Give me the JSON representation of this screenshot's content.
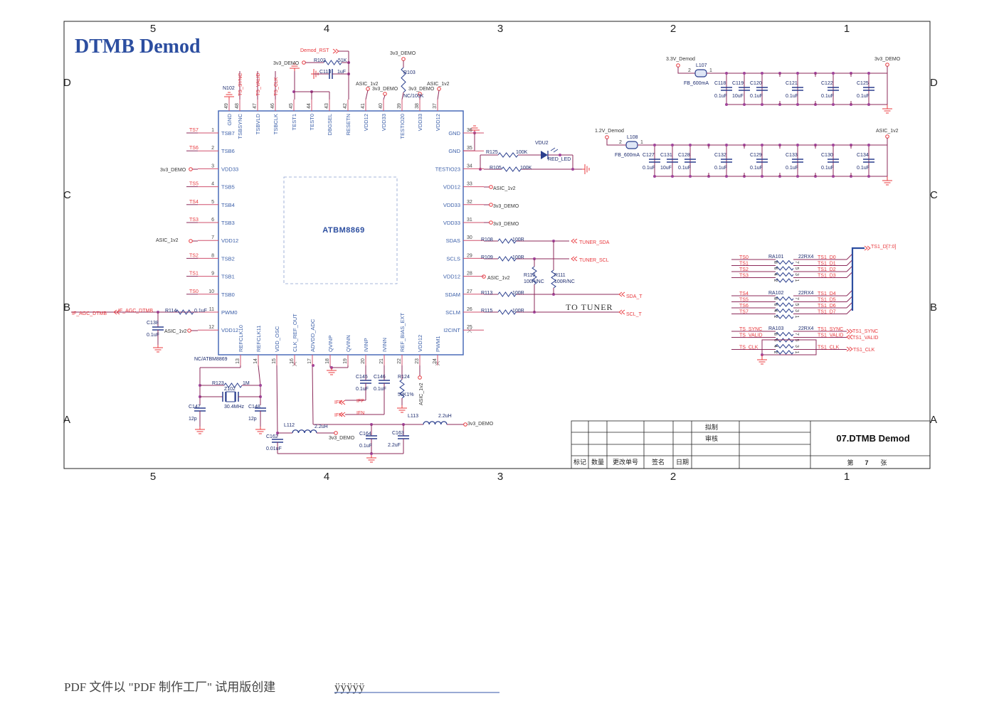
{
  "title": "DTMB Demod",
  "zones": {
    "columns": [
      "5",
      "4",
      "3",
      "2",
      "1"
    ],
    "rows": [
      "D",
      "C",
      "B",
      "A"
    ]
  },
  "colors": {
    "wire": "#8c2a5a",
    "net_label": "#e8383d",
    "pin_name": "#3a5ea8",
    "component": "#1c2b6e",
    "junction": "#a0449a",
    "title": "#2c4ea0"
  },
  "chip": {
    "part": "ATBM8869",
    "ref": "NC/ATBM8869",
    "left": [
      {
        "num": "1",
        "name": "TSB7",
        "net": "TS7"
      },
      {
        "num": "2",
        "name": "TSB6",
        "net": "TS6"
      },
      {
        "num": "3",
        "name": "VDD33",
        "net": ""
      },
      {
        "num": "4",
        "name": "TSB5",
        "net": "TS5"
      },
      {
        "num": "5",
        "name": "TSB4",
        "net": "TS4"
      },
      {
        "num": "6",
        "name": "TSB3",
        "net": "TS3"
      },
      {
        "num": "7",
        "name": "VDD12",
        "net": ""
      },
      {
        "num": "8",
        "name": "TSB2",
        "net": "TS2"
      },
      {
        "num": "9",
        "name": "TSB1",
        "net": "TS1"
      },
      {
        "num": "10",
        "name": "TSB0",
        "net": "TS0"
      },
      {
        "num": "11",
        "name": "PWM0",
        "net": ""
      },
      {
        "num": "12",
        "name": "VDD12",
        "net": ""
      }
    ],
    "right": [
      {
        "num": "36",
        "name": "GND"
      },
      {
        "num": "35",
        "name": "GND"
      },
      {
        "num": "34",
        "name": "TESTIO23"
      },
      {
        "num": "33",
        "name": "VDD12"
      },
      {
        "num": "32",
        "name": "VDD33"
      },
      {
        "num": "31",
        "name": "VDD33"
      },
      {
        "num": "30",
        "name": "SDAS"
      },
      {
        "num": "29",
        "name": "SCLS"
      },
      {
        "num": "28",
        "name": "VDD12"
      },
      {
        "num": "27",
        "name": "SDAM"
      },
      {
        "num": "26",
        "name": "SCLM"
      },
      {
        "num": "25",
        "name": "I2CINT"
      }
    ],
    "top": [
      {
        "num": "49",
        "name": "GND"
      },
      {
        "num": "48",
        "name": "TSBSYNC"
      },
      {
        "num": "47",
        "name": "TSBVLD"
      },
      {
        "num": "46",
        "name": "TSBCLK"
      },
      {
        "num": "45",
        "name": "TEST1"
      },
      {
        "num": "44",
        "name": "TEST0"
      },
      {
        "num": "43",
        "name": "DBGSEL"
      },
      {
        "num": "42",
        "name": "RESETN"
      },
      {
        "num": "41",
        "name": "VDD12"
      },
      {
        "num": "40",
        "name": "VDD33"
      },
      {
        "num": "39",
        "name": "TESTIO20"
      },
      {
        "num": "38",
        "name": "VDD33"
      },
      {
        "num": "37",
        "name": "VDD12"
      }
    ],
    "bottom": [
      {
        "num": "13",
        "name": "REFCLK10"
      },
      {
        "num": "14",
        "name": "REFCLK11"
      },
      {
        "num": "15",
        "name": "VDD_OSC"
      },
      {
        "num": "16",
        "name": "CLK_REF_OUT"
      },
      {
        "num": "17",
        "name": "ADVDD_ADC"
      },
      {
        "num": "18",
        "name": "QVINP"
      },
      {
        "num": "19",
        "name": "QVINN"
      },
      {
        "num": "20",
        "name": "IVINP"
      },
      {
        "num": "21",
        "name": "IVINN"
      },
      {
        "num": "22",
        "name": "REF_BIAS_EXT"
      },
      {
        "num": "23",
        "name": "VDD12"
      },
      {
        "num": "24",
        "name": "PWM1"
      }
    ]
  },
  "labels": {
    "l3": "3v3_DEMO",
    "l7": "ASIC_1v2",
    "if_agc1": "IF_AGC_DTMB",
    "if_agc2": "IF_AGC_DTMB",
    "r114": "R114",
    "r114v": "0.1uF",
    "c138": "C138",
    "c138v": "0.1uF",
    "l12": "ASIC_1v2",
    "n102": "N102",
    "ts_sync": "TS_SYNC",
    "ts_valid": "TS_VALID",
    "ts_clk": "TS_CLK",
    "demod_rst": "Demod_RST",
    "r102_pwr": "3v3_DEMO",
    "r102": "R102",
    "r102v": "51K",
    "c113": "C113",
    "c113v": "1uF",
    "r103_pwr": "3v3_DEMO",
    "r103": "R103",
    "r103v": "NC/100K",
    "l41": "ASIC_1v2",
    "l40": "3v3_DEMO",
    "l38": "3v3_DEMO",
    "l37": "ASIC_1v2",
    "r125": "R125",
    "r125v": "100K",
    "vdu2": "VDU2",
    "led": "RED_LED",
    "r105": "R105",
    "r105v": "100K",
    "l33": "ASIC_1v2",
    "l32": "3v3_DEMO",
    "l31": "3v3_DEMO",
    "r108": "R108",
    "r108v": "100R",
    "tuner_sda": "TUNER_SDA",
    "r109": "R109",
    "r109v": "100R",
    "tuner_scl": "TUNER_SCL",
    "l28": "ASIC_1v2",
    "r110": "R110",
    "r110v": "100R/NC",
    "r111": "R111",
    "r111v": "100R/NC",
    "r113": "R113",
    "r113v": "100R",
    "sda_t": "SDA_T",
    "r115": "R115",
    "r115v": "100R",
    "scl_t": "SCL_T",
    "to_tuner": "TO TUNER",
    "r123": "R123",
    "r123v": "1M",
    "z102": "Z102",
    "xtal": "30.4MHz",
    "c147": "C147",
    "c147v": "12p",
    "c148": "C148",
    "c148v": "12p",
    "c162": "C162",
    "c162v": "0.01uF",
    "l112": "L112",
    "l112v": "2.2uH",
    "l112_pwr": "3v3_DEMO",
    "c164": "C164",
    "c164v": "0.1uF",
    "c163": "C163",
    "c163v": "2.2uF",
    "l113": "L113",
    "l113v": "2.2uH",
    "l113_pwr": "3v3_DEMO",
    "c145": "C145",
    "c145v": "0.1uF",
    "c146": "C146",
    "c146v": "0.1uF",
    "r124": "R124",
    "r124v": "59K1%",
    "ifp1": "IFP",
    "ifp2": "IFP",
    "ifn1": "IFN",
    "ifn2": "IFN",
    "l23": "ASIC_1v2"
  },
  "decoupling": [
    {
      "source": "3.3V_Demod",
      "bead": "L107",
      "bead_value": "FB_600mA",
      "pin_in": "2",
      "pin_out": "1",
      "rail": "3v3_DEMO",
      "caps": [
        {
          "ref": "C118",
          "value": "0.1uF"
        },
        {
          "ref": "C119",
          "value": "10uF"
        },
        {
          "ref": "C120",
          "value": "0.1uF"
        },
        {
          "ref": "C121",
          "value": "0.1uF"
        },
        {
          "ref": "C122",
          "value": "0.1uF"
        },
        {
          "ref": "C125",
          "value": "0.1uF"
        }
      ]
    },
    {
      "source": "1.2V_Demod",
      "bead": "L108",
      "bead_value": "FB_600mA",
      "pin_in": "2",
      "pin_out": "1",
      "rail": "ASIC_1v2",
      "caps": [
        {
          "ref": "C127",
          "value": "0.1uF"
        },
        {
          "ref": "C131",
          "value": "10uF"
        },
        {
          "ref": "C128",
          "value": "0.1uF"
        },
        {
          "ref": "C132",
          "value": "0.1uF"
        },
        {
          "ref": "C129",
          "value": "0.1uF"
        },
        {
          "ref": "C133",
          "value": "0.1uF"
        },
        {
          "ref": "C130",
          "value": "0.1uF"
        },
        {
          "ref": "C134",
          "value": "0.1uF"
        }
      ]
    }
  ],
  "resistor_arrays": [
    {
      "ref": "RA101",
      "value": "22RX4",
      "inputs": [
        "TS0",
        "TS1",
        "TS2",
        "TS3"
      ],
      "outputs": [
        "TS1_D0",
        "TS1_D1",
        "TS1_D2",
        "TS1_D3"
      ],
      "pins_left": [
        "8",
        "6",
        "4",
        "2"
      ],
      "pins_right": [
        "7",
        "5",
        "3",
        "1"
      ]
    },
    {
      "ref": "RA102",
      "value": "22RX4",
      "inputs": [
        "TS4",
        "TS5",
        "TS6",
        "TS7"
      ],
      "outputs": [
        "TS1_D4",
        "TS1_D5",
        "TS1_D6",
        "TS1_D7"
      ],
      "pins_left": [
        "8",
        "6",
        "4",
        "2"
      ],
      "pins_right": [
        "7",
        "5",
        "3",
        "1"
      ]
    },
    {
      "ref": "RA103",
      "value": "22RX4",
      "inputs": [
        "TS_SYNC",
        "TS_VALID",
        "",
        "TS_CLK"
      ],
      "outputs": [
        "TS1_SYNC",
        "TS1_VALID",
        "",
        "TS1_CLK"
      ],
      "pins_left": [
        "8",
        "6",
        "4",
        "2"
      ],
      "pins_right": [
        "7",
        "5",
        "3",
        "1"
      ]
    }
  ],
  "bus": {
    "label": "TS1_D[7:0]",
    "sync": "TS1_SYNC",
    "valid": "TS1_VALID",
    "clk": "TS1_CLK"
  },
  "title_block": {
    "drawn": "拟制",
    "checked": "审核",
    "sheet_title": "07.DTMB Demod",
    "columns": [
      "标记",
      "数量",
      "更改单号",
      "签名",
      "日期"
    ],
    "sheet_prefix": "第",
    "sheet_number": "7",
    "sheet_suffix": "张"
  },
  "footer": {
    "text": "PDF 文件以 \"PDF 制作工厂\" 试用版创建",
    "link": "ÿÿÿÿÿ"
  }
}
